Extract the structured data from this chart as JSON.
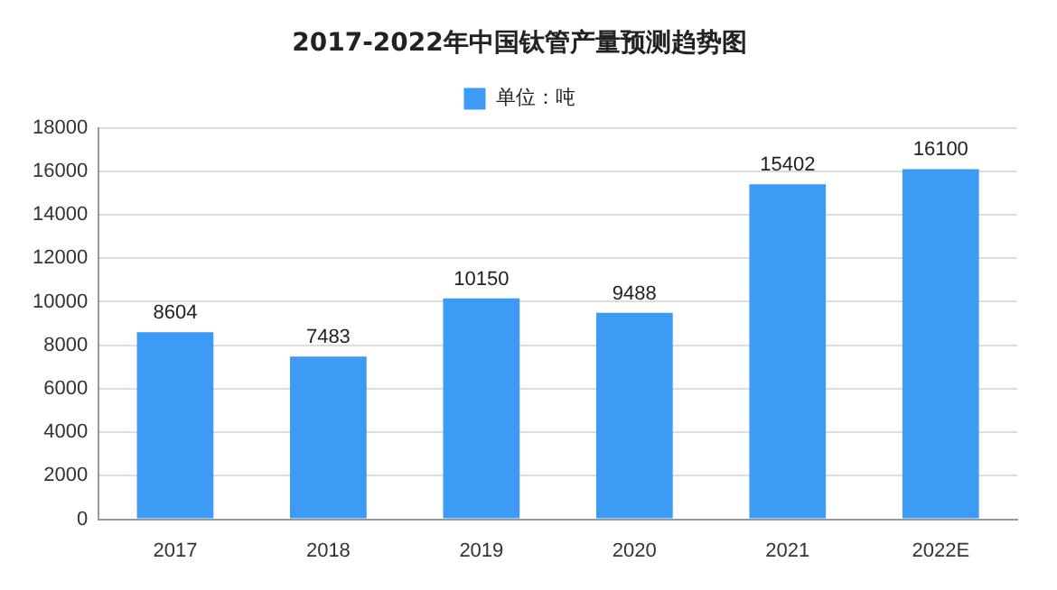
{
  "chart_data": {
    "type": "bar",
    "title": "2017-2022年中国钛管产量预测趋势图",
    "categories": [
      "2017",
      "2018",
      "2019",
      "2020",
      "2021",
      "2022E"
    ],
    "series": [
      {
        "name": "单位：吨",
        "color": "#3d9bf5",
        "values": [
          8604,
          7483,
          10150,
          9488,
          15402,
          16100
        ]
      }
    ],
    "ylim": [
      0,
      18000
    ],
    "yticks": [
      0,
      2000,
      4000,
      6000,
      8000,
      10000,
      12000,
      14000,
      16000,
      18000
    ],
    "grid": "y",
    "legend": "top",
    "data_labels": true
  }
}
